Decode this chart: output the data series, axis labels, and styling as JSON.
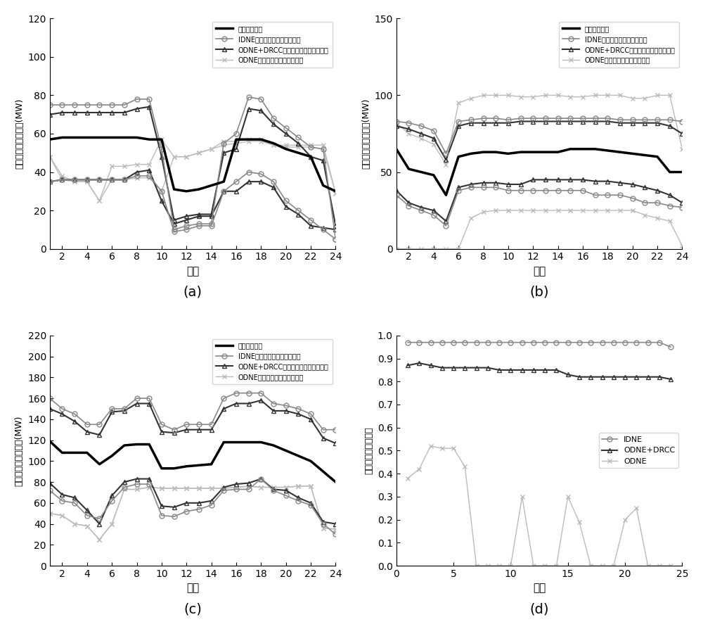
{
  "xlabel": "时段",
  "ylabel_abc": "可再生能力消纳能力(MW)",
  "ylabel_d": "可再生能源消纳概率",
  "legend_wind": "风电预测出力",
  "legend_idne": "IDNE方法可可消纳的上下边界",
  "legend_odne_drcc": "ODNE+DRCC方法可可消纳的上下边界",
  "legend_odne": "ODNE方法可可消纳的上下边界",
  "legend_d_idne": "IDNE",
  "legend_d_odne_drcc": "ODNE+DRCC",
  "legend_d_odne": "ODNE",
  "x": [
    1,
    2,
    3,
    4,
    5,
    6,
    7,
    8,
    9,
    10,
    11,
    12,
    13,
    14,
    15,
    16,
    17,
    18,
    19,
    20,
    21,
    22,
    23,
    24
  ],
  "a_wind": [
    57,
    58,
    58,
    58,
    58,
    58,
    58,
    58,
    57,
    57,
    31,
    30,
    31,
    33,
    35,
    57,
    57,
    57,
    55,
    52,
    50,
    48,
    33,
    30
  ],
  "a_idne_upper": [
    75,
    75,
    75,
    75,
    75,
    75,
    75,
    78,
    78,
    52,
    10,
    12,
    13,
    13,
    55,
    60,
    79,
    78,
    68,
    63,
    58,
    53,
    52,
    5
  ],
  "a_idne_lower": [
    35,
    36,
    36,
    36,
    36,
    36,
    36,
    38,
    38,
    30,
    9,
    10,
    12,
    12,
    30,
    35,
    40,
    39,
    35,
    25,
    20,
    15,
    10,
    5
  ],
  "a_odne_drcc_upper": [
    70,
    71,
    71,
    71,
    71,
    71,
    71,
    73,
    74,
    48,
    15,
    17,
    18,
    18,
    50,
    52,
    73,
    72,
    65,
    60,
    55,
    48,
    46,
    12
  ],
  "a_odne_drcc_lower": [
    35,
    36,
    36,
    36,
    36,
    36,
    36,
    40,
    41,
    25,
    13,
    15,
    17,
    17,
    30,
    30,
    35,
    35,
    32,
    22,
    18,
    12,
    11,
    10
  ],
  "a_odne_upper": [
    48,
    38,
    35,
    35,
    25,
    43,
    43,
    44,
    44,
    57,
    48,
    48,
    50,
    52,
    56,
    56,
    57,
    57,
    54,
    54,
    54,
    54,
    54,
    29
  ],
  "a_odne_lower": [
    48,
    36,
    35,
    35,
    25,
    36,
    36,
    37,
    37,
    30,
    48,
    48,
    50,
    52,
    54,
    55,
    56,
    56,
    54,
    53,
    53,
    53,
    52,
    29
  ],
  "b_wind": [
    65,
    52,
    50,
    48,
    35,
    60,
    62,
    63,
    63,
    62,
    63,
    63,
    63,
    63,
    65,
    65,
    65,
    64,
    63,
    62,
    61,
    60,
    50,
    50
  ],
  "b_idne_upper": [
    83,
    82,
    80,
    77,
    62,
    83,
    84,
    85,
    85,
    84,
    85,
    85,
    85,
    85,
    85,
    85,
    85,
    85,
    84,
    84,
    84,
    84,
    84,
    83
  ],
  "b_idne_lower": [
    35,
    28,
    25,
    22,
    15,
    38,
    40,
    40,
    40,
    38,
    38,
    38,
    38,
    38,
    38,
    38,
    35,
    35,
    35,
    33,
    30,
    30,
    28,
    27
  ],
  "b_odne_drcc_upper": [
    80,
    78,
    75,
    72,
    58,
    80,
    82,
    82,
    82,
    82,
    83,
    83,
    83,
    83,
    83,
    83,
    83,
    83,
    82,
    82,
    82,
    82,
    80,
    75
  ],
  "b_odne_drcc_lower": [
    38,
    30,
    27,
    25,
    18,
    40,
    42,
    43,
    43,
    42,
    42,
    45,
    45,
    45,
    45,
    45,
    44,
    44,
    43,
    42,
    40,
    38,
    35,
    30
  ],
  "b_odne_upper": [
    82,
    75,
    72,
    68,
    55,
    95,
    98,
    100,
    100,
    100,
    99,
    99,
    100,
    100,
    99,
    99,
    100,
    100,
    100,
    98,
    98,
    100,
    100,
    65
  ],
  "b_odne_lower": [
    0,
    0,
    0,
    0,
    0,
    0,
    20,
    24,
    25,
    25,
    25,
    25,
    25,
    25,
    25,
    25,
    25,
    25,
    25,
    25,
    22,
    20,
    18,
    2
  ],
  "c_wind": [
    119,
    108,
    108,
    108,
    97,
    105,
    115,
    116,
    116,
    93,
    93,
    95,
    96,
    97,
    118,
    118,
    118,
    118,
    115,
    110,
    105,
    100,
    90,
    80
  ],
  "c_idne_upper": [
    160,
    150,
    145,
    135,
    135,
    150,
    150,
    160,
    160,
    135,
    130,
    135,
    135,
    135,
    160,
    165,
    165,
    165,
    155,
    153,
    150,
    145,
    130,
    130
  ],
  "c_idne_lower": [
    72,
    62,
    60,
    48,
    45,
    62,
    75,
    78,
    78,
    48,
    47,
    52,
    54,
    58,
    72,
    73,
    73,
    83,
    72,
    67,
    62,
    58,
    40,
    30
  ],
  "c_odne_drcc_upper": [
    150,
    145,
    138,
    128,
    125,
    147,
    148,
    155,
    155,
    128,
    127,
    130,
    130,
    130,
    150,
    155,
    155,
    158,
    148,
    148,
    145,
    140,
    122,
    117
  ],
  "c_odne_drcc_lower": [
    79,
    68,
    65,
    53,
    40,
    67,
    80,
    83,
    83,
    57,
    56,
    60,
    60,
    62,
    75,
    78,
    79,
    83,
    73,
    72,
    65,
    60,
    42,
    40
  ],
  "c_odne_upper": [
    50,
    48,
    40,
    38,
    25,
    40,
    73,
    73,
    75,
    74,
    74,
    74,
    74,
    74,
    74,
    75,
    76,
    75,
    75,
    75,
    76,
    76,
    36,
    35
  ],
  "c_odne_lower": [
    50,
    48,
    40,
    38,
    25,
    40,
    73,
    73,
    75,
    74,
    74,
    74,
    74,
    74,
    74,
    75,
    76,
    75,
    75,
    75,
    76,
    76,
    36,
    35
  ],
  "d_x": [
    1,
    2,
    3,
    4,
    5,
    6,
    7,
    8,
    9,
    10,
    11,
    12,
    13,
    14,
    15,
    16,
    17,
    18,
    19,
    20,
    21,
    22,
    23,
    24
  ],
  "d_idne": [
    0.97,
    0.97,
    0.97,
    0.97,
    0.97,
    0.97,
    0.97,
    0.97,
    0.97,
    0.97,
    0.97,
    0.97,
    0.97,
    0.97,
    0.97,
    0.97,
    0.97,
    0.97,
    0.97,
    0.97,
    0.97,
    0.97,
    0.97,
    0.95
  ],
  "d_odne_drcc": [
    0.87,
    0.88,
    0.87,
    0.86,
    0.86,
    0.86,
    0.86,
    0.86,
    0.85,
    0.85,
    0.85,
    0.85,
    0.85,
    0.85,
    0.83,
    0.82,
    0.82,
    0.82,
    0.82,
    0.82,
    0.82,
    0.82,
    0.82,
    0.81
  ],
  "d_odne": [
    0.38,
    0.42,
    0.52,
    0.51,
    0.51,
    0.43,
    0.0,
    0.0,
    0.0,
    0.0,
    0.3,
    0.0,
    0.0,
    0.0,
    0.3,
    0.19,
    0.0,
    0.0,
    0.0,
    0.2,
    0.25,
    0.0,
    0.0,
    0.0
  ],
  "color_wind": "#000000",
  "color_idne": "#888888",
  "color_odne_drcc": "#333333",
  "color_odne": "#bbbbbb",
  "lw_wind": 2.5,
  "lw_idne": 1.2,
  "lw_odne_drcc": 1.5,
  "lw_odne": 1.0
}
